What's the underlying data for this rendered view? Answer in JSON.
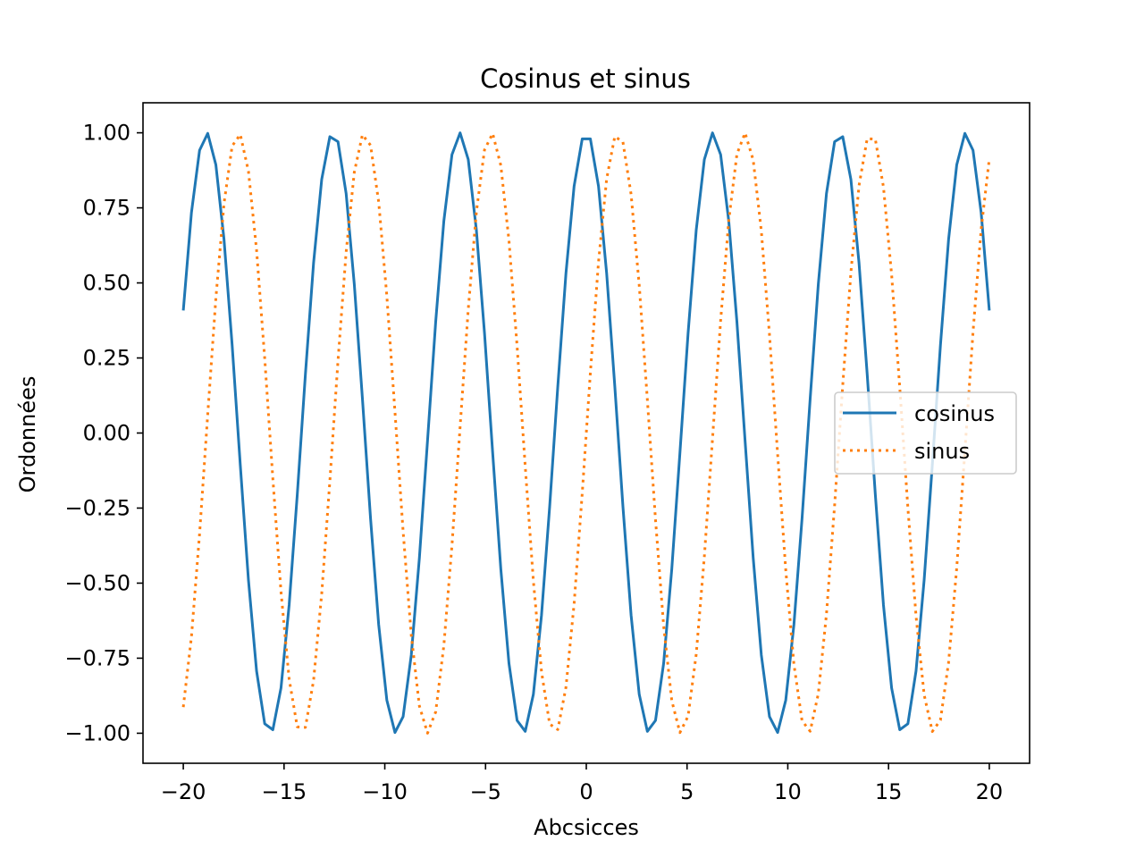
{
  "chart_data": {
    "type": "line",
    "title": "Cosinus et sinus",
    "xlabel": "Abcsicces",
    "ylabel": "Ordonnées",
    "xlim": [
      -22,
      22
    ],
    "ylim": [
      -1.1,
      1.1
    ],
    "x_range": [
      -20,
      20
    ],
    "num_points": 100,
    "x_ticks": [
      -20,
      -15,
      -10,
      -5,
      0,
      5,
      10,
      15,
      20
    ],
    "x_tick_labels": [
      "−20",
      "−15",
      "−10",
      "−5",
      "0",
      "5",
      "10",
      "15",
      "20"
    ],
    "y_ticks": [
      1.0,
      0.75,
      0.5,
      0.25,
      0.0,
      -0.25,
      -0.5,
      -0.75,
      -1.0
    ],
    "y_tick_labels": [
      "1.00",
      "0.75",
      "0.50",
      "0.25",
      "0.00",
      "−0.25",
      "−0.50",
      "−0.75",
      "−1.00"
    ],
    "grid": false,
    "legend_position": "center-right",
    "series": [
      {
        "name": "cosinus",
        "function": "cos",
        "color": "#1f77b4",
        "style": "solid"
      },
      {
        "name": "sinus",
        "function": "sin",
        "color": "#ff7f0e",
        "style": "dotted"
      }
    ]
  }
}
